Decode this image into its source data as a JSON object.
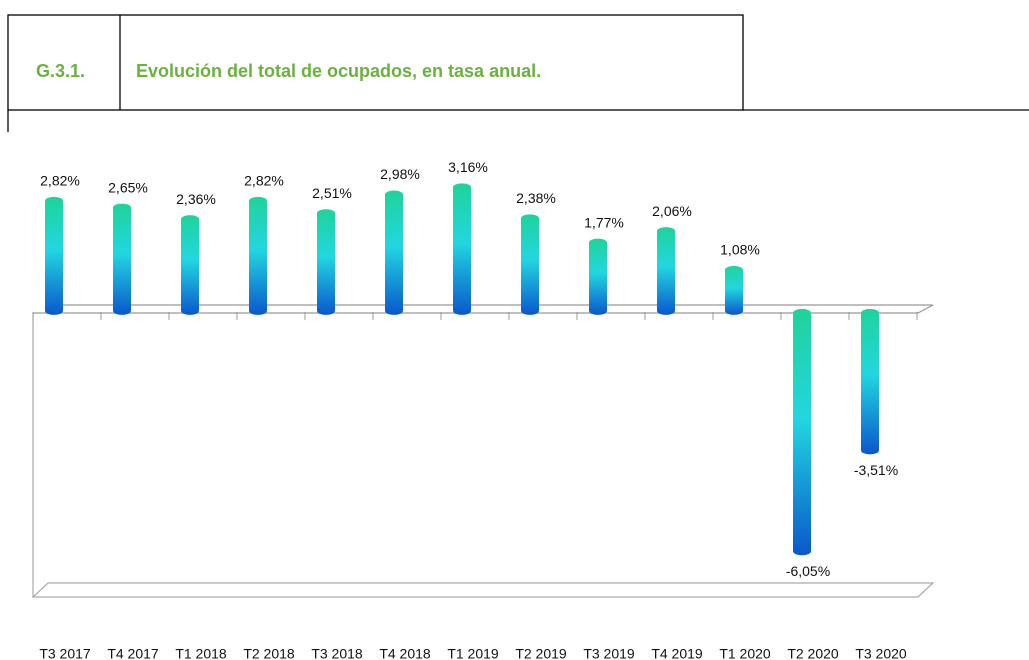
{
  "header": {
    "code": "G.3.1.",
    "title": "Evolución del total de ocupados, en tasa anual."
  },
  "chart_data": {
    "type": "bar",
    "categories": [
      "T3 2017",
      "T4 2017",
      "T1 2018",
      "T2 2018",
      "T3 2018",
      "T4 2018",
      "T1 2019",
      "T2 2019",
      "T3 2019",
      "T4 2019",
      "T1 2020",
      "T2 2020",
      "T3 2020"
    ],
    "values": [
      2.82,
      2.65,
      2.36,
      2.82,
      2.51,
      2.98,
      3.16,
      2.38,
      1.77,
      2.06,
      1.08,
      -6.05,
      -3.51
    ],
    "value_labels": [
      "2,82%",
      "2,65%",
      "2,36%",
      "2,82%",
      "2,51%",
      "2,98%",
      "3,16%",
      "2,38%",
      "1,77%",
      "2,06%",
      "1,08%",
      "-6,05%",
      "-3,51%"
    ],
    "ylim": [
      -7,
      4
    ],
    "colors": [
      "#1fd39a",
      "#22d6e0",
      "#0a57cc"
    ]
  }
}
